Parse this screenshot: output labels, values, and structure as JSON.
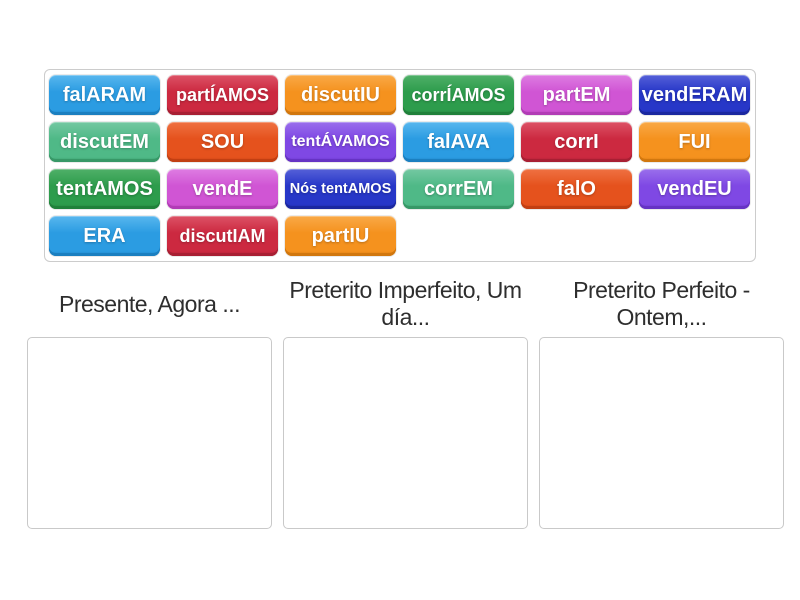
{
  "page": {
    "background": "#ffffff",
    "activity_type": "group-sort"
  },
  "palette": {
    "blue": {
      "top": "#58b7ee",
      "main": "#2b9ce2",
      "edge": "#1b7fc0"
    },
    "crimson": {
      "top": "#dd5266",
      "main": "#cc2940",
      "edge": "#a81f33"
    },
    "orange": {
      "top": "#f9a947",
      "main": "#f5921e",
      "edge": "#d1770e"
    },
    "green": {
      "top": "#4fb068",
      "main": "#2d9c4c",
      "edge": "#20813a"
    },
    "orchid": {
      "top": "#de7ce2",
      "main": "#d055d4",
      "edge": "#b23cb6"
    },
    "royal": {
      "top": "#5560d8",
      "main": "#2737c8",
      "edge": "#1b28a0"
    },
    "seagreen": {
      "top": "#74c8a2",
      "main": "#4fb987",
      "edge": "#379867"
    },
    "vermillion": {
      "top": "#ef7142",
      "main": "#e5521d",
      "edge": "#c23f12"
    },
    "purple": {
      "top": "#9a6fec",
      "main": "#7f48e4",
      "edge": "#6633c4"
    }
  },
  "tile_bank": {
    "tiles": [
      {
        "label": "falARAM",
        "color": "blue"
      },
      {
        "label": "partÍAMOS",
        "color": "crimson"
      },
      {
        "label": "discutIU",
        "color": "orange"
      },
      {
        "label": "corrÍAMOS",
        "color": "green"
      },
      {
        "label": "partEM",
        "color": "orchid"
      },
      {
        "label": "vendERAM",
        "color": "royal"
      },
      {
        "label": "discutEM",
        "color": "seagreen"
      },
      {
        "label": "SOU",
        "color": "vermillion"
      },
      {
        "label": "tentÁVAMOS",
        "color": "purple"
      },
      {
        "label": "falAVA",
        "color": "blue"
      },
      {
        "label": "corrI",
        "color": "crimson"
      },
      {
        "label": "FUI",
        "color": "orange"
      },
      {
        "label": "tentAMOS",
        "color": "green"
      },
      {
        "label": "vendE",
        "color": "orchid"
      },
      {
        "label": "Nós tentAMOS",
        "color": "royal"
      },
      {
        "label": "corrEM",
        "color": "seagreen"
      },
      {
        "label": "falO",
        "color": "vermillion"
      },
      {
        "label": "vendEU",
        "color": "purple"
      },
      {
        "label": "ERA",
        "color": "blue"
      },
      {
        "label": "discutIAM",
        "color": "crimson"
      },
      {
        "label": "partIU",
        "color": "orange"
      }
    ]
  },
  "categories": [
    {
      "label": "Presente, Agora ..."
    },
    {
      "label": "Preterito Imperfeito, Um día..."
    },
    {
      "label": "Preterito Perfeito - Ontem,..."
    }
  ]
}
